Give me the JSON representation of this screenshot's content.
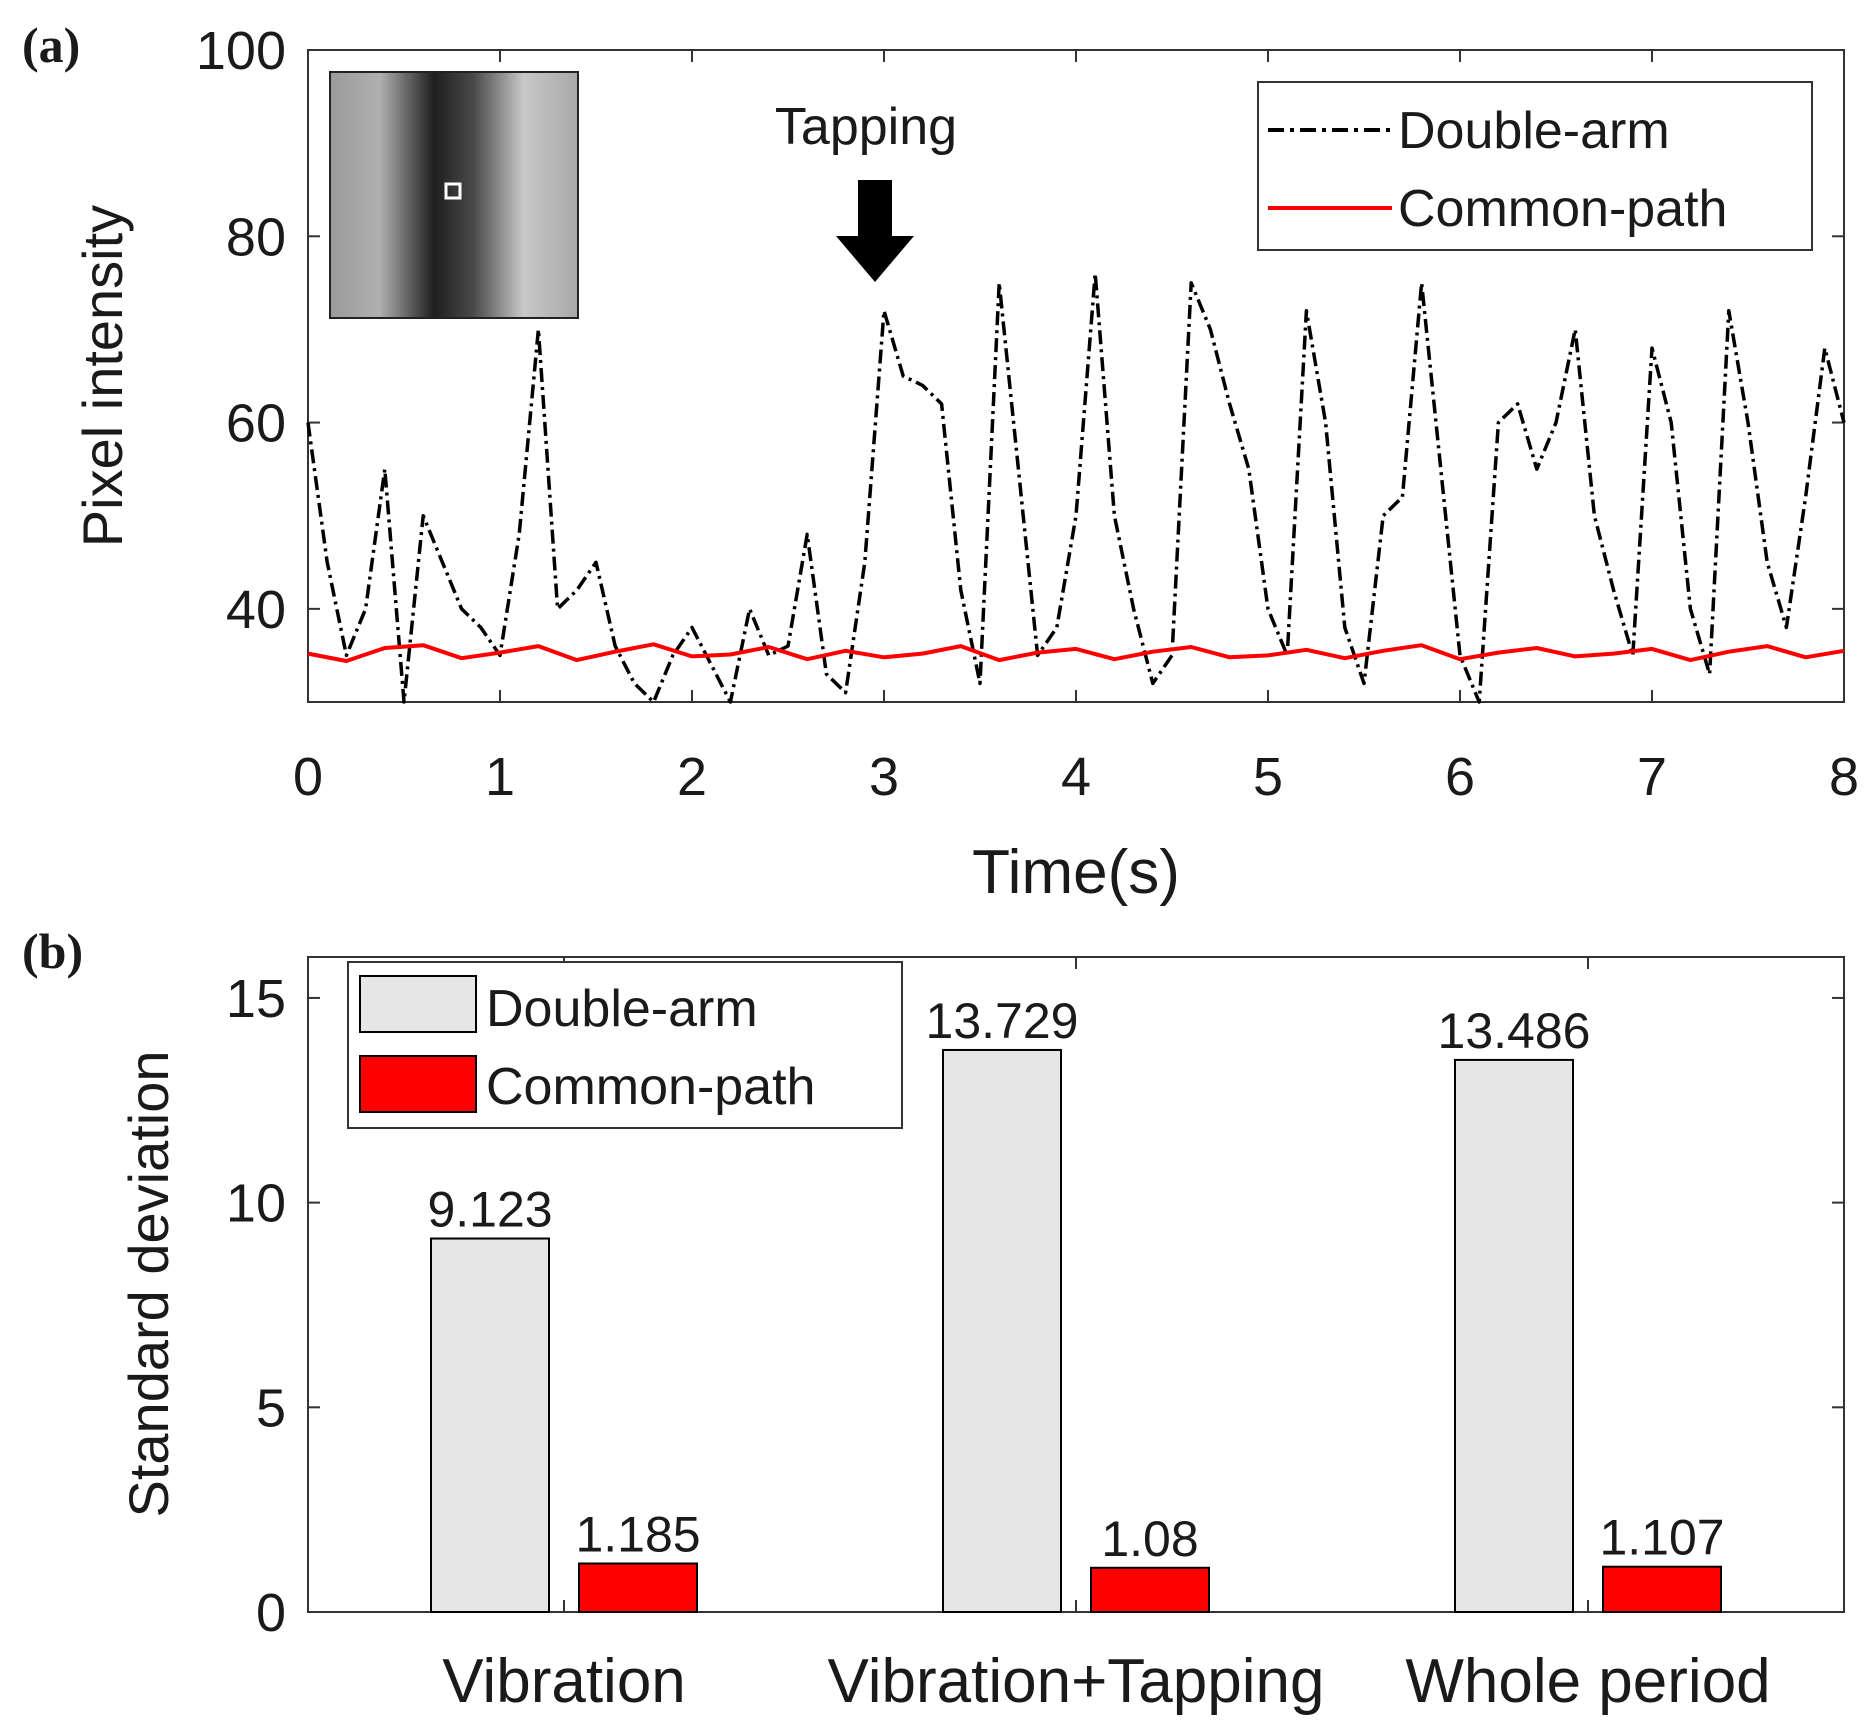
{
  "figure": {
    "panel_a_label": "(a)",
    "panel_b_label": "(b)"
  },
  "chart_data": [
    {
      "type": "line",
      "panel": "(a)",
      "title": "",
      "xlabel": "Time(s)",
      "ylabel": "Pixel intensity",
      "xlim": [
        0,
        8
      ],
      "ylim": [
        30,
        100
      ],
      "xticks": [
        0,
        1,
        2,
        3,
        4,
        5,
        6,
        7,
        8
      ],
      "yticks": [
        40,
        60,
        80,
        100
      ],
      "grid": false,
      "legend_position": "top-right",
      "annotation": {
        "text": "Tapping",
        "x": 3.0,
        "y": 74
      },
      "inset": "fringe-image",
      "series": [
        {
          "name": "Double-arm",
          "color": "#000000",
          "style": "dash-dot",
          "x": [
            0,
            0.1,
            0.2,
            0.3,
            0.4,
            0.5,
            0.6,
            0.7,
            0.8,
            0.9,
            1.0,
            1.1,
            1.2,
            1.3,
            1.4,
            1.5,
            1.6,
            1.7,
            1.8,
            1.9,
            2.0,
            2.1,
            2.2,
            2.3,
            2.4,
            2.5,
            2.6,
            2.7,
            2.8,
            2.9,
            3.0,
            3.1,
            3.2,
            3.3,
            3.4,
            3.5,
            3.6,
            3.7,
            3.8,
            3.9,
            4.0,
            4.1,
            4.2,
            4.3,
            4.4,
            4.5,
            4.6,
            4.7,
            4.8,
            4.9,
            5.0,
            5.1,
            5.2,
            5.3,
            5.4,
            5.5,
            5.6,
            5.7,
            5.8,
            5.9,
            6.0,
            6.1,
            6.2,
            6.3,
            6.4,
            6.5,
            6.6,
            6.7,
            6.8,
            6.9,
            7.0,
            7.1,
            7.2,
            7.3,
            7.4,
            7.5,
            7.6,
            7.7,
            7.8,
            7.9,
            8.0
          ],
          "y": [
            60,
            45,
            35,
            40,
            55,
            30,
            50,
            45,
            40,
            38,
            35,
            48,
            70,
            40,
            42,
            45,
            36,
            32,
            30,
            35,
            38,
            34,
            30,
            40,
            35,
            36,
            48,
            33,
            31,
            45,
            72,
            65,
            64,
            62,
            42,
            32,
            75,
            55,
            35,
            38,
            50,
            76,
            50,
            40,
            32,
            35,
            75,
            70,
            62,
            55,
            40,
            35,
            72,
            60,
            38,
            32,
            50,
            52,
            75,
            55,
            35,
            30,
            60,
            62,
            55,
            60,
            70,
            50,
            42,
            35,
            68,
            60,
            40,
            33,
            72,
            60,
            45,
            38,
            52,
            68,
            60
          ]
        },
        {
          "name": "Common-path",
          "color": "#ff0000",
          "style": "solid",
          "x": [
            0,
            0.2,
            0.4,
            0.6,
            0.8,
            1.0,
            1.2,
            1.4,
            1.6,
            1.8,
            2.0,
            2.2,
            2.4,
            2.6,
            2.8,
            3.0,
            3.2,
            3.4,
            3.6,
            3.8,
            4.0,
            4.2,
            4.4,
            4.6,
            4.8,
            5.0,
            5.2,
            5.4,
            5.6,
            5.8,
            6.0,
            6.2,
            6.4,
            6.6,
            6.8,
            7.0,
            7.2,
            7.4,
            7.6,
            7.8,
            8.0
          ],
          "y": [
            35.2,
            34.4,
            35.8,
            36.1,
            34.7,
            35.3,
            36.0,
            34.5,
            35.4,
            36.2,
            34.9,
            35.1,
            35.9,
            34.6,
            35.5,
            34.8,
            35.2,
            36.0,
            34.5,
            35.3,
            35.7,
            34.6,
            35.4,
            35.9,
            34.8,
            35.0,
            35.6,
            34.7,
            35.5,
            36.1,
            34.6,
            35.3,
            35.8,
            34.9,
            35.2,
            35.7,
            34.5,
            35.4,
            36.0,
            34.8,
            35.5
          ]
        }
      ]
    },
    {
      "type": "bar",
      "panel": "(b)",
      "title": "",
      "xlabel": "",
      "ylabel": "Standard deviation",
      "ylim": [
        0,
        16
      ],
      "yticks": [
        0,
        5,
        10,
        15
      ],
      "grid": false,
      "legend_position": "top-left",
      "categories": [
        "Vibration",
        "Vibration+Tapping",
        "Whole period"
      ],
      "series": [
        {
          "name": "Double-arm",
          "color": "#e6e6e6",
          "values": [
            9.123,
            13.729,
            13.486
          ],
          "labels": [
            "9.123",
            "13.729",
            "13.486"
          ]
        },
        {
          "name": "Common-path",
          "color": "#ff0000",
          "values": [
            1.185,
            1.08,
            1.107
          ],
          "labels": [
            "1.185",
            "1.08",
            "1.107"
          ]
        }
      ]
    }
  ]
}
